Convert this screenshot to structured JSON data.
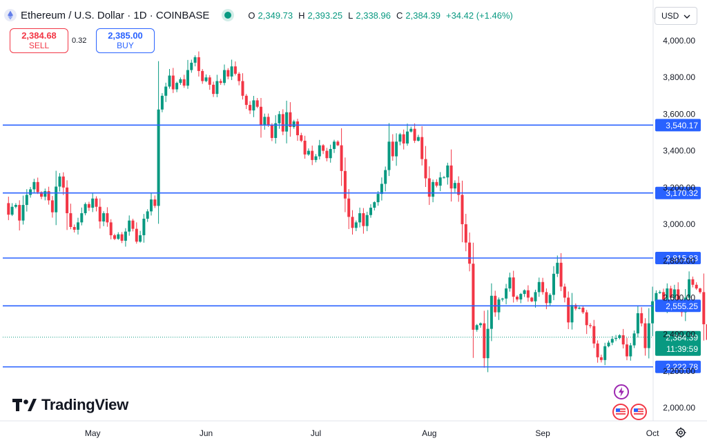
{
  "header": {
    "title": "Ethereum / U.S. Dollar · 1D · COINBASE",
    "ohlc": [
      {
        "label": "O",
        "value": "2,349.73"
      },
      {
        "label": "H",
        "value": "2,393.25"
      },
      {
        "label": "L",
        "value": "2,338.96"
      },
      {
        "label": "C",
        "value": "2,384.39"
      }
    ],
    "change": "+34.42 (+1.46%)"
  },
  "trade": {
    "sell_price": "2,384.68",
    "sell_label": "SELL",
    "spread": "0.32",
    "buy_price": "2,385.00",
    "buy_label": "BUY"
  },
  "currency": "USD",
  "logo_text": "TradingView",
  "chart_data": {
    "type": "candlestick",
    "ylim": [
      1900,
      4080
    ],
    "y_ticks": [
      {
        "value": 2000,
        "label": "2,000.00"
      },
      {
        "value": 2200,
        "label": "2,200.00"
      },
      {
        "value": 2400,
        "label": "2,400.00"
      },
      {
        "value": 2600,
        "label": "2,600.00"
      },
      {
        "value": 2800,
        "label": "2,800.00"
      },
      {
        "value": 3000,
        "label": "3,000.00"
      },
      {
        "value": 3200,
        "label": "3,200.00"
      },
      {
        "value": 3400,
        "label": "3,400.00"
      },
      {
        "value": 3600,
        "label": "3,600.00"
      },
      {
        "value": 3800,
        "label": "3,800.00"
      },
      {
        "value": 4000,
        "label": "4,000.00"
      }
    ],
    "x_ticks": [
      {
        "index": 24,
        "label": "May"
      },
      {
        "index": 55,
        "label": "Jun"
      },
      {
        "index": 85,
        "label": "Jul"
      },
      {
        "index": 116,
        "label": "Aug"
      },
      {
        "index": 147,
        "label": "Sep"
      },
      {
        "index": 177,
        "label": "Oct"
      }
    ],
    "horizontal_lines": [
      {
        "value": 3540.17,
        "label": "3,540.17",
        "color": "#2962ff"
      },
      {
        "value": 3170.32,
        "label": "3,170.32",
        "color": "#2962ff"
      },
      {
        "value": 2815.83,
        "label": "2,815.83",
        "color": "#2962ff"
      },
      {
        "value": 2555.25,
        "label": "2,555.25",
        "color": "#2962ff"
      },
      {
        "value": 2222.78,
        "label": "2,222.78",
        "color": "#2962ff"
      }
    ],
    "last_price": {
      "value": 2384.39,
      "label": "2,384.39",
      "countdown": "11:39:59",
      "color": "#089981"
    },
    "up_color": "#089981",
    "down_color": "#f23645",
    "closes": [
      3115,
      3052,
      3095,
      3105,
      3020,
      3105,
      3160,
      3190,
      3230,
      3175,
      3150,
      3180,
      3130,
      3065,
      3205,
      3260,
      3200,
      3060,
      2985,
      2970,
      3010,
      3060,
      3110,
      3090,
      3140,
      3095,
      3015,
      3060,
      3010,
      2940,
      2920,
      2945,
      2910,
      2960,
      3020,
      2975,
      2905,
      2940,
      3030,
      3070,
      3135,
      3100,
      3625,
      3700,
      3750,
      3810,
      3735,
      3770,
      3790,
      3755,
      3840,
      3880,
      3910,
      3835,
      3780,
      3800,
      3760,
      3710,
      3780,
      3770,
      3840,
      3805,
      3860,
      3820,
      3780,
      3700,
      3650,
      3620,
      3675,
      3640,
      3540,
      3585,
      3540,
      3470,
      3550,
      3600,
      3505,
      3610,
      3530,
      3560,
      3485,
      3455,
      3380,
      3400,
      3350,
      3370,
      3430,
      3400,
      3360,
      3410,
      3450,
      3430,
      3290,
      3140,
      3040,
      2980,
      3010,
      3060,
      2990,
      3050,
      3090,
      3120,
      3165,
      3220,
      3295,
      3450,
      3370,
      3450,
      3490,
      3440,
      3505,
      3520,
      3455,
      3475,
      3355,
      3250,
      3150,
      3230,
      3210,
      3255,
      3255,
      3320,
      3195,
      3225,
      3160,
      3000,
      2900,
      2785,
      2425,
      2450,
      2460,
      2270,
      2430,
      2610,
      2520,
      2590,
      2595,
      2650,
      2710,
      2605,
      2590,
      2620,
      2640,
      2600,
      2580,
      2630,
      2685,
      2630,
      2570,
      2615,
      2730,
      2790,
      2660,
      2600,
      2465,
      2560,
      2540,
      2545,
      2520,
      2450,
      2445,
      2350,
      2275,
      2260,
      2335,
      2355,
      2375,
      2380,
      2395,
      2345,
      2280,
      2340,
      2405,
      2515,
      2460,
      2325,
      2460,
      2580,
      2625,
      2630,
      2560,
      2650,
      2600,
      2645,
      2570,
      2520,
      2600,
      2700,
      2670,
      2650,
      2630,
      2455,
      2370,
      2349.73,
      2384.39
    ]
  }
}
